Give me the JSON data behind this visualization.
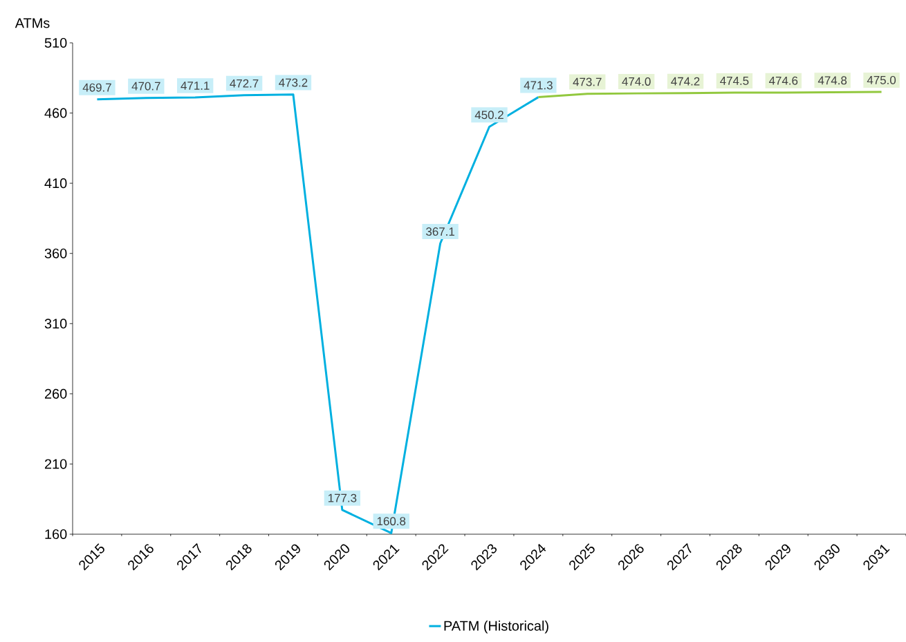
{
  "chart_data": {
    "type": "line",
    "ylabel": "ATMs",
    "categories": [
      "2015",
      "2016",
      "2017",
      "2018",
      "2019",
      "2020",
      "2021",
      "2022",
      "2023",
      "2024",
      "2025",
      "2026",
      "2027",
      "2028",
      "2029",
      "2030",
      "2031"
    ],
    "series": [
      {
        "name": "PATM (Historical)",
        "color": "#00b0e0",
        "values": [
          469.7,
          470.7,
          471.1,
          472.7,
          473.2,
          177.3,
          160.8,
          367.1,
          450.2,
          471.3,
          null,
          null,
          null,
          null,
          null,
          null,
          null
        ],
        "value_labels": [
          "469.7",
          "470.7",
          "471.1",
          "472.7",
          "473.2",
          "177.3",
          "160.8",
          "367.1",
          "450.2",
          "471.3",
          null,
          null,
          null,
          null,
          null,
          null,
          null
        ]
      },
      {
        "color": "#92c83e",
        "values": [
          null,
          null,
          null,
          null,
          null,
          null,
          null,
          null,
          null,
          471.3,
          473.7,
          474.0,
          474.2,
          474.5,
          474.6,
          474.8,
          475.0
        ],
        "value_labels": [
          null,
          null,
          null,
          null,
          null,
          null,
          null,
          null,
          null,
          null,
          "473.7",
          "474.0",
          "474.2",
          "474.5",
          "474.6",
          "474.8",
          "475.0"
        ]
      }
    ],
    "ylim": [
      160,
      510
    ],
    "yticks": [
      160,
      210,
      260,
      310,
      360,
      410,
      460,
      510
    ],
    "grid": false,
    "legend": "bottom",
    "marker": "none",
    "line_style": "solid"
  }
}
